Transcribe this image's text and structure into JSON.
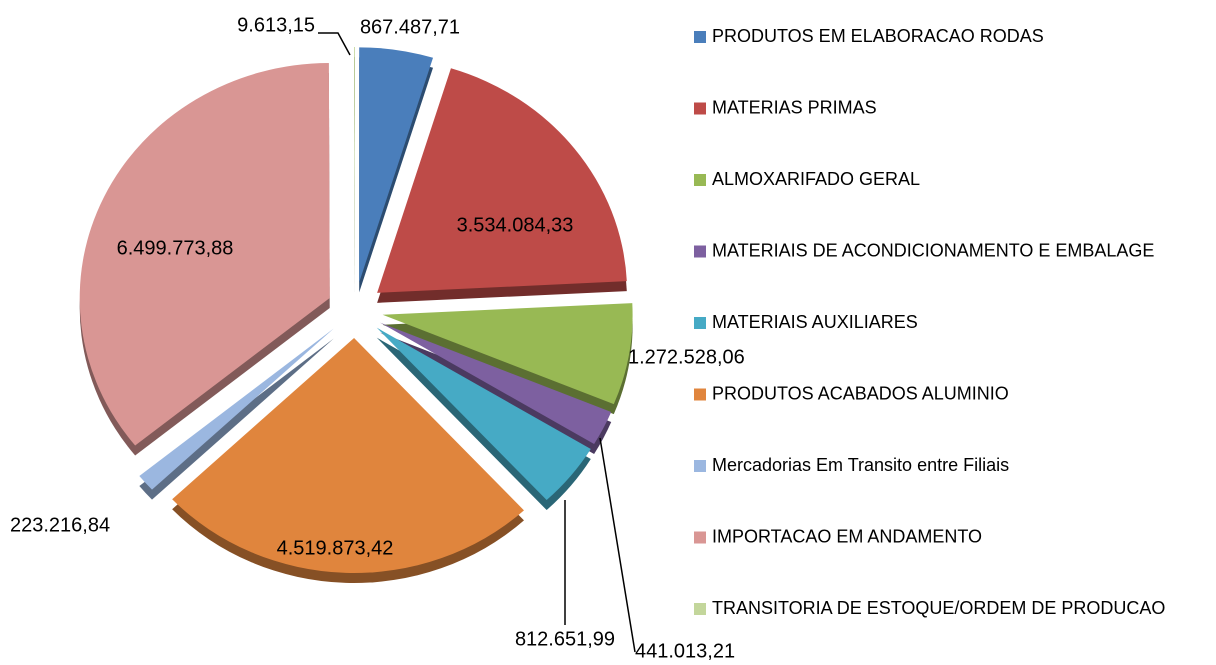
{
  "chart_data": {
    "type": "pie",
    "categories": [
      "PRODUTOS EM ELABORACAO RODAS",
      "MATERIAS PRIMAS",
      "ALMOXARIFADO GERAL",
      "MATERIAIS DE ACONDICIONAMENTO E EMBALAGE",
      "MATERIAIS AUXILIARES",
      "PRODUTOS ACABADOS ALUMINIO",
      "Mercadorias Em Transito entre Filiais",
      "IMPORTACAO EM ANDAMENTO",
      "TRANSITORIA DE ESTOQUE/ORDEM DE PRODUCAO"
    ],
    "values": [
      867487.71,
      3534084.33,
      1272528.06,
      441013.21,
      812651.99,
      4519873.42,
      223216.84,
      6499773.88,
      9613.15
    ],
    "value_labels": [
      "867.487,71",
      "3.534.084,33",
      "1.272.528,06",
      "441.013,21",
      "812.651,99",
      "4.519.873,42",
      "223.216,84",
      "6.499.773,88",
      "9.613,15"
    ],
    "colors": [
      "#4a7ebb",
      "#be4b48",
      "#98b954",
      "#7d60a0",
      "#46aac5",
      "#e0853d",
      "#9bb7e0",
      "#d99694",
      "#c3d69b"
    ],
    "legend": "right"
  }
}
